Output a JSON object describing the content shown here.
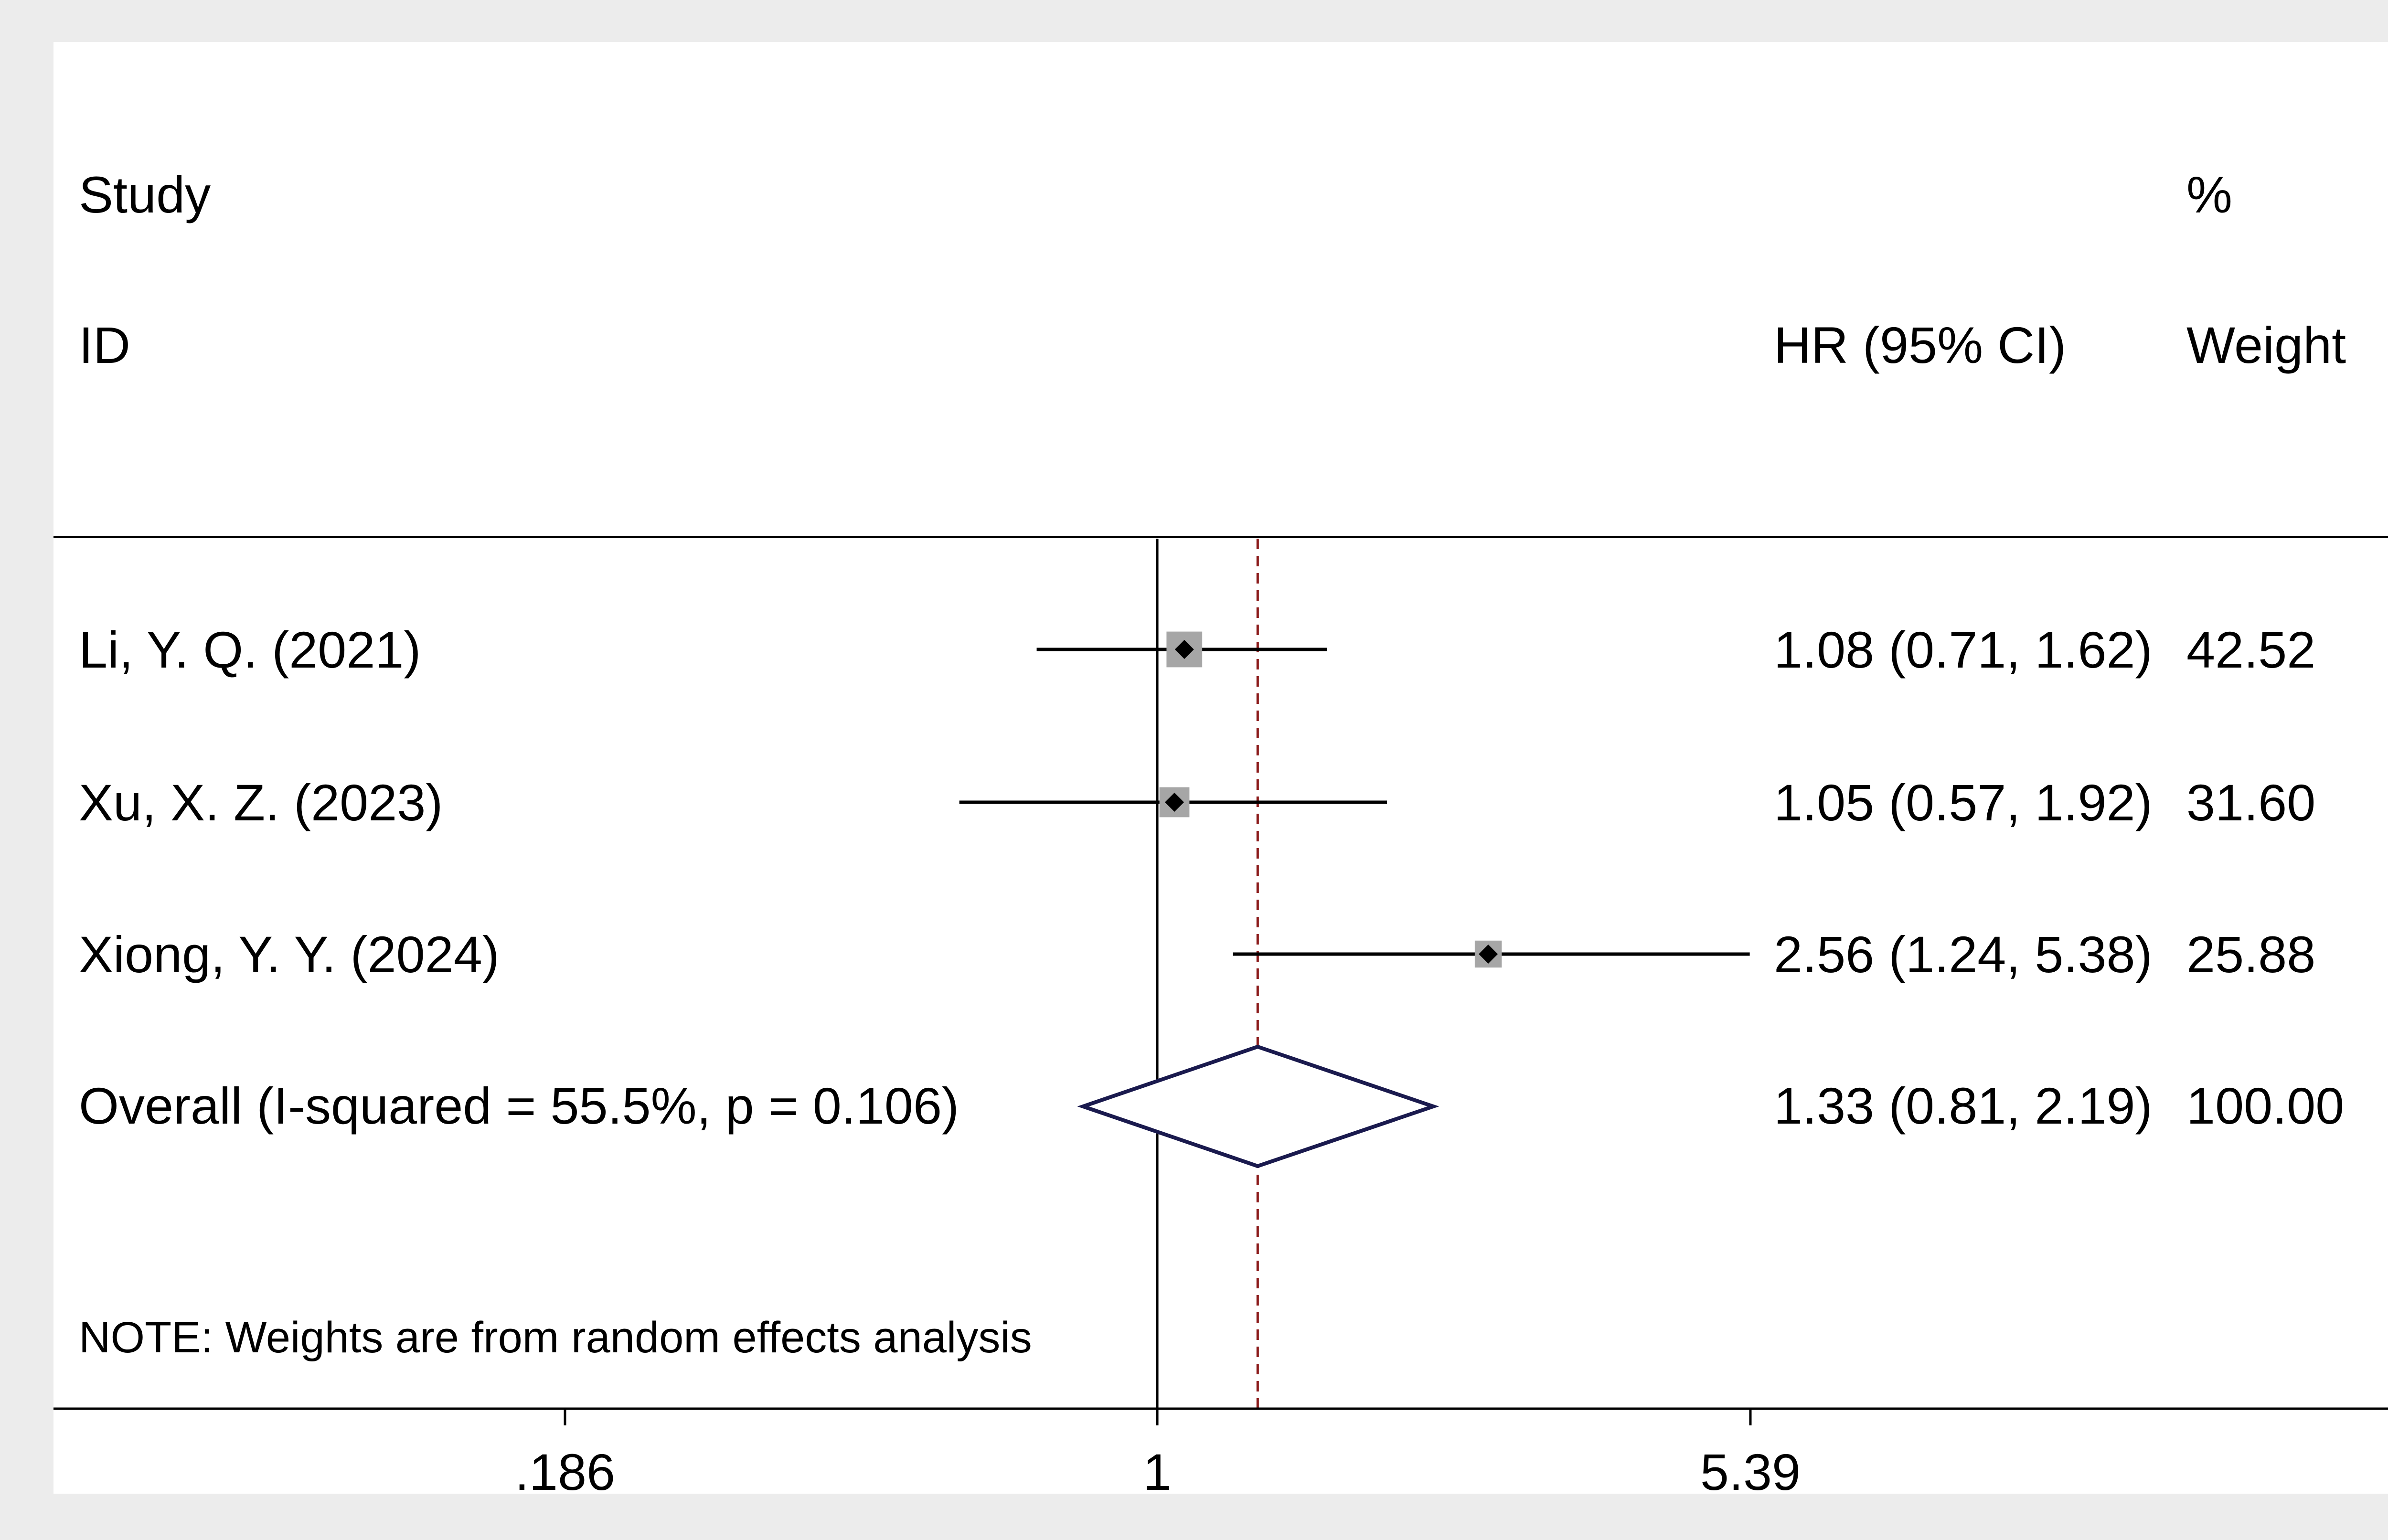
{
  "header": {
    "study_line1": "Study",
    "study_line2": "ID",
    "hr_label": "HR (95% CI)",
    "weight_line1": "%",
    "weight_line2": "Weight"
  },
  "note": "NOTE: Weights are from random effects analysis",
  "colors": {
    "background": "#ececec",
    "panel": "#ffffff",
    "ci_line": "#000000",
    "square": "#a6a6a6",
    "diamond": "#1a1a4e",
    "overall_line": "#8b1a1a"
  },
  "chart_data": {
    "type": "forest",
    "x_scale": "log",
    "x_range": [
      0.186,
      5.39
    ],
    "reference_value": 1,
    "x_ticks": [
      {
        "value": 0.186,
        "label": ".186"
      },
      {
        "value": 1,
        "label": "1"
      },
      {
        "value": 5.39,
        "label": "5.39"
      }
    ],
    "studies": [
      {
        "label": "Li, Y. Q. (2021)",
        "hr": 1.08,
        "lo": 0.71,
        "hi": 1.62,
        "ci_text": "1.08 (0.71, 1.62)",
        "weight": 42.52,
        "weight_text": "42.52"
      },
      {
        "label": "Xu, X. Z. (2023)",
        "hr": 1.05,
        "lo": 0.57,
        "hi": 1.92,
        "ci_text": "1.05 (0.57, 1.92)",
        "weight": 31.6,
        "weight_text": "31.60"
      },
      {
        "label": "Xiong, Y. Y. (2024)",
        "hr": 2.56,
        "lo": 1.24,
        "hi": 5.38,
        "ci_text": "2.56 (1.24, 5.38)",
        "weight": 25.88,
        "weight_text": "25.88"
      }
    ],
    "overall": {
      "label": "Overall  (I-squared = 55.5%, p = 0.106)",
      "hr": 1.33,
      "lo": 0.81,
      "hi": 2.19,
      "ci_text": "1.33 (0.81, 2.19)",
      "weight_text": "100.00"
    }
  }
}
